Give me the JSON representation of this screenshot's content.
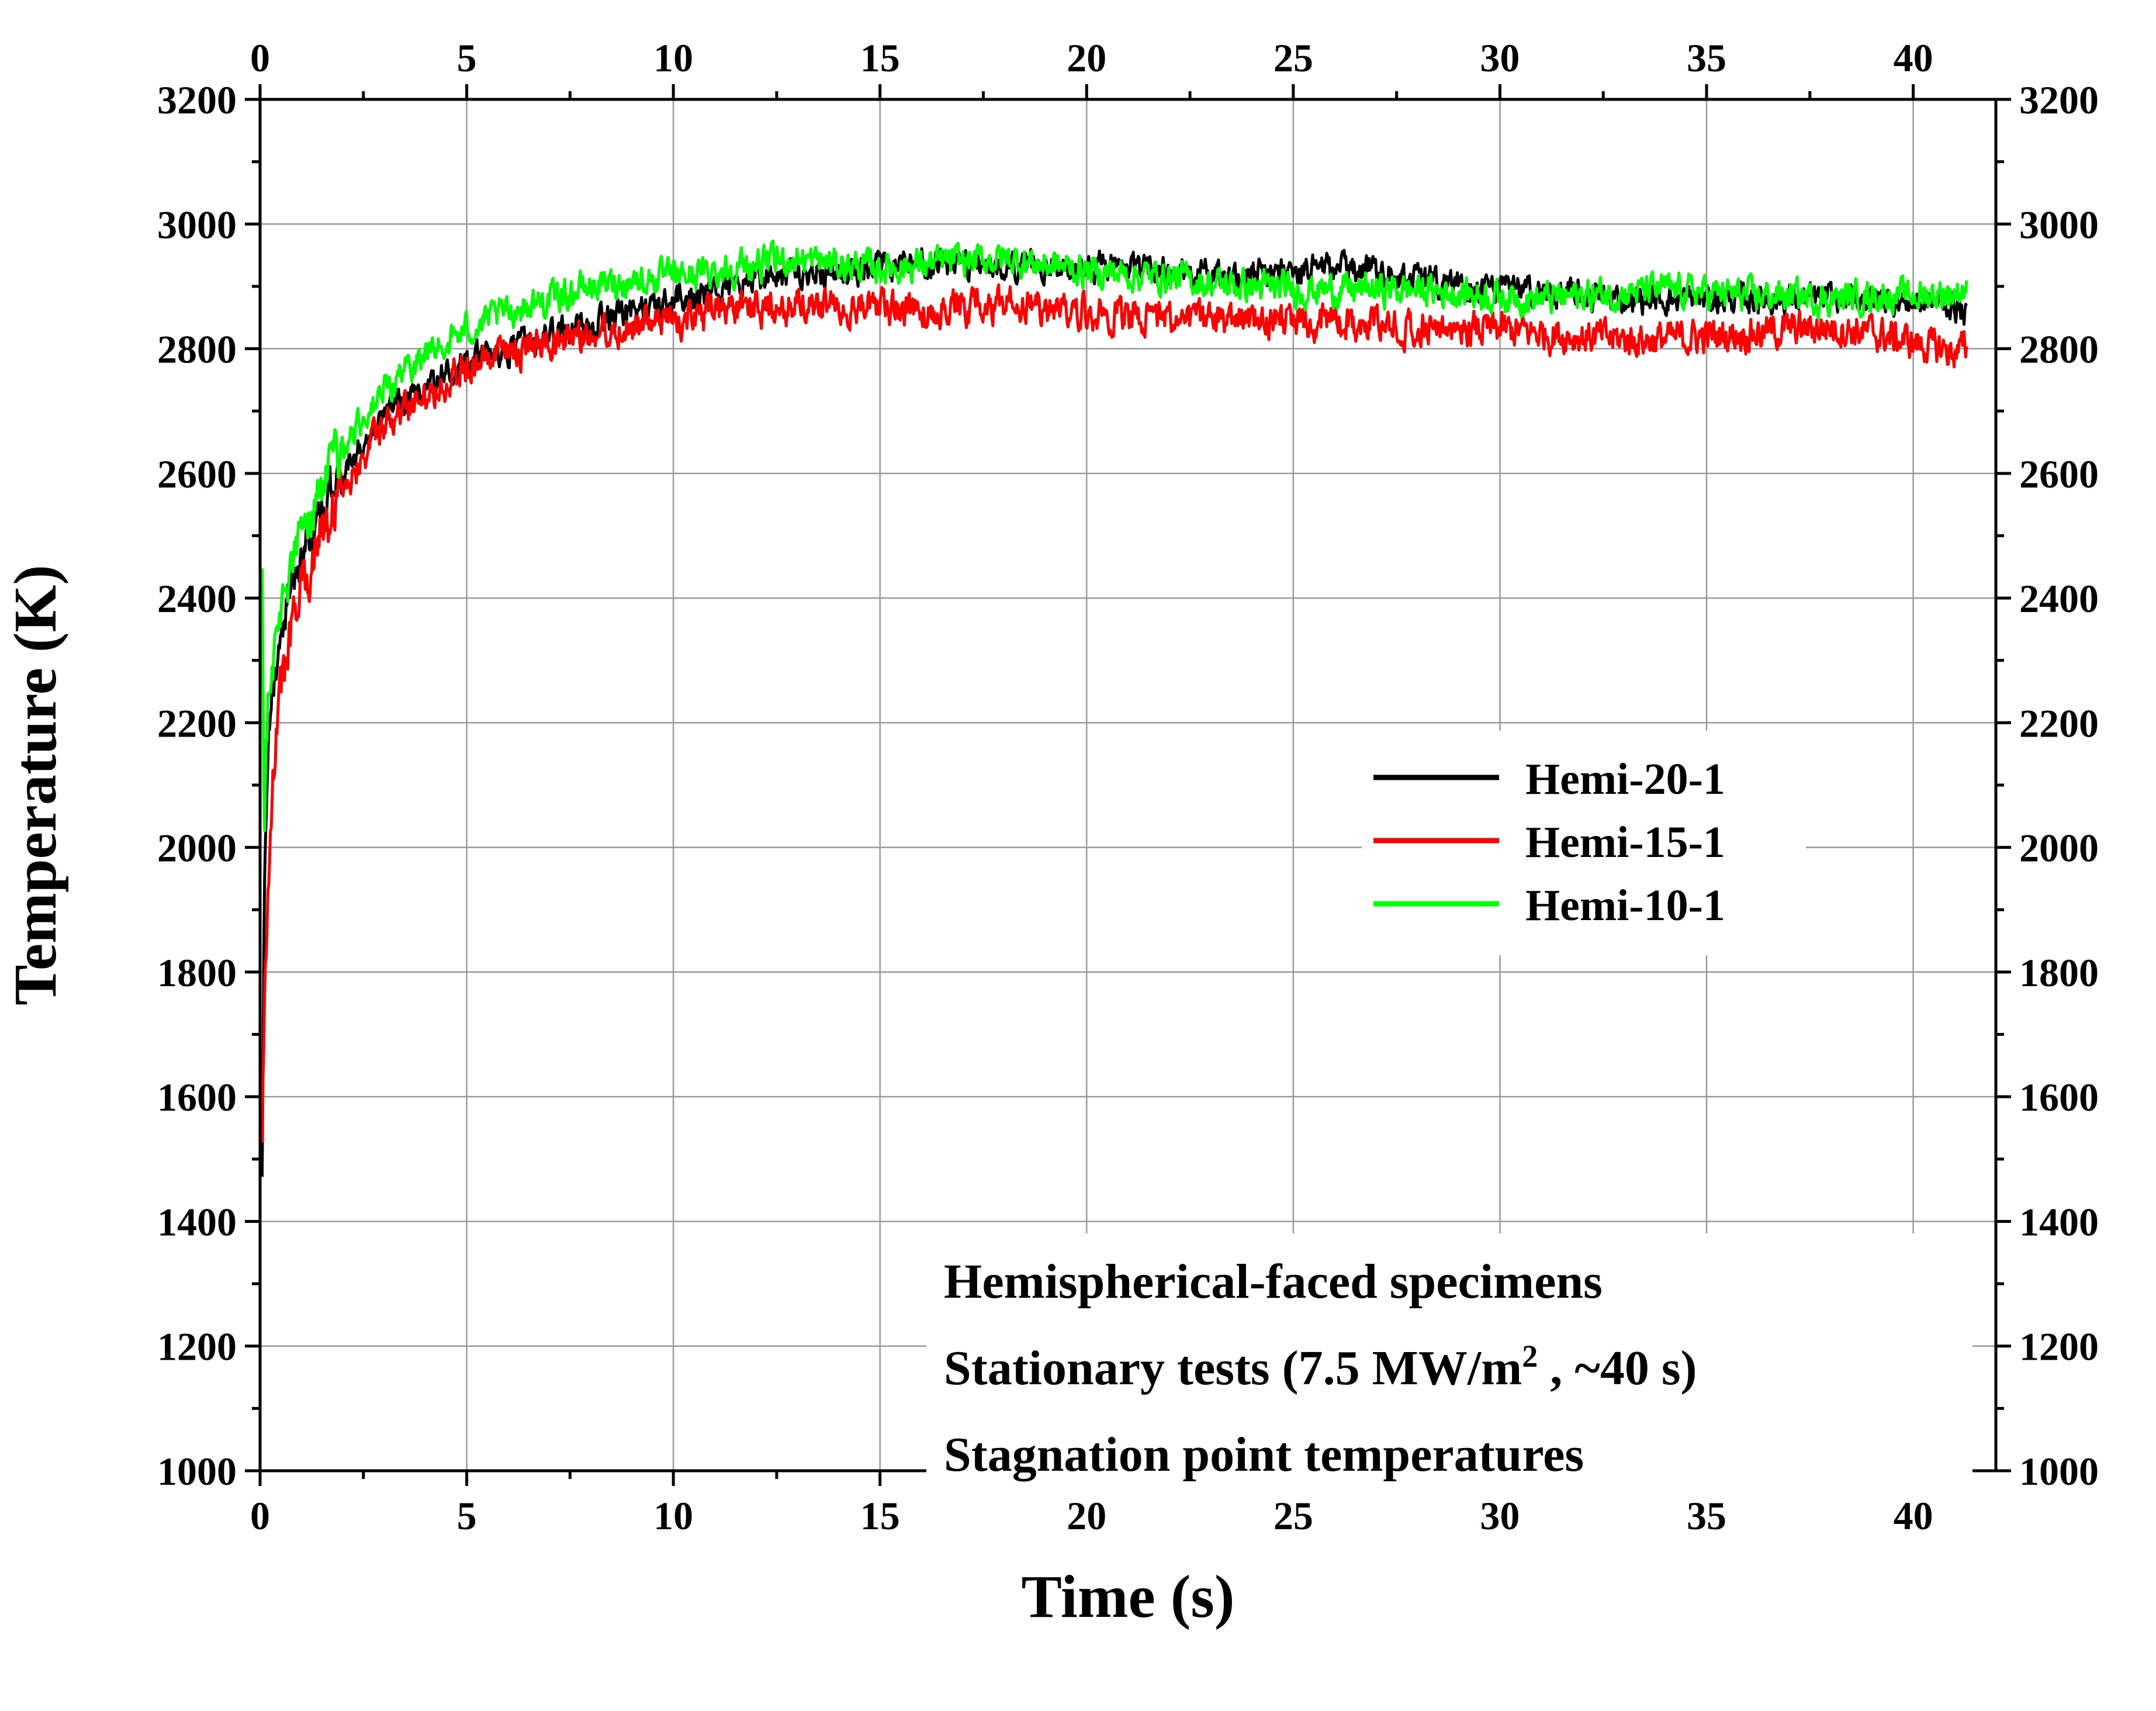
{
  "chart_data": {
    "type": "line",
    "title": "",
    "xlabel": "Time (s)",
    "ylabel": "Temperature (K)",
    "xlim": [
      0,
      42
    ],
    "ylim": [
      1000,
      3200
    ],
    "x_ticks": [
      0,
      5,
      10,
      15,
      20,
      25,
      30,
      35,
      40
    ],
    "x_tick_labels": [
      "0",
      "5",
      "10",
      "15",
      "20",
      "25",
      "30",
      "35",
      "40"
    ],
    "y_ticks": [
      1000,
      1200,
      1400,
      1600,
      1800,
      2000,
      2200,
      2400,
      2600,
      2800,
      3000,
      3200
    ],
    "y_tick_labels": [
      "1000",
      "1200",
      "1400",
      "1600",
      "1800",
      "2000",
      "2200",
      "2400",
      "2600",
      "2800",
      "3000",
      "3200"
    ],
    "grid": true,
    "mirror_axes": true,
    "legend_position": "right-middle",
    "series": [
      {
        "name": "Hemi-20-1",
        "color": "#000000",
        "x": [
          0.05,
          0.1,
          0.2,
          0.3,
          0.5,
          0.75,
          1,
          1.5,
          2,
          2.5,
          3,
          3.5,
          4,
          4.5,
          5,
          6,
          7,
          8,
          9,
          10,
          11,
          12,
          13,
          14,
          15,
          16,
          17,
          18,
          19,
          20,
          21,
          22,
          23,
          24,
          25,
          26,
          27,
          28,
          29,
          30,
          31,
          32,
          33,
          34,
          35,
          36,
          37,
          38,
          39,
          40,
          41,
          41.3
        ],
        "values": [
          1450,
          1900,
          2150,
          2250,
          2350,
          2420,
          2470,
          2540,
          2600,
          2650,
          2690,
          2720,
          2740,
          2760,
          2775,
          2800,
          2820,
          2840,
          2860,
          2880,
          2895,
          2910,
          2920,
          2925,
          2930,
          2935,
          2935,
          2935,
          2935,
          2935,
          2930,
          2925,
          2920,
          2920,
          2925,
          2930,
          2930,
          2910,
          2900,
          2895,
          2890,
          2885,
          2880,
          2880,
          2880,
          2880,
          2880,
          2880,
          2880,
          2875,
          2870,
          2850
        ],
        "noise": 18
      },
      {
        "name": "Hemi-15-1",
        "color": "#ff0000",
        "x": [
          0.05,
          0.1,
          0.2,
          0.3,
          0.5,
          0.75,
          1,
          1.5,
          2,
          2.5,
          3,
          3.5,
          4,
          4.5,
          5,
          6,
          7,
          8,
          9,
          10,
          11,
          12,
          13,
          14,
          15,
          16,
          17,
          18,
          19,
          20,
          21,
          22,
          23,
          24,
          25,
          26,
          27,
          28,
          29,
          30,
          31,
          32,
          33,
          34,
          35,
          36,
          37,
          38,
          39,
          40,
          41,
          41.3
        ],
        "values": [
          1550,
          1720,
          1950,
          2120,
          2250,
          2340,
          2410,
          2510,
          2580,
          2630,
          2670,
          2700,
          2730,
          2750,
          2770,
          2790,
          2810,
          2825,
          2835,
          2845,
          2855,
          2865,
          2870,
          2870,
          2865,
          2860,
          2865,
          2870,
          2865,
          2860,
          2855,
          2850,
          2845,
          2845,
          2845,
          2845,
          2840,
          2835,
          2830,
          2830,
          2825,
          2820,
          2815,
          2815,
          2820,
          2825,
          2830,
          2835,
          2825,
          2810,
          2795,
          2800
        ],
        "noise": 22
      },
      {
        "name": "Hemi-10-1",
        "color": "#00ff00",
        "x": [
          0.05,
          0.1,
          0.2,
          0.3,
          0.5,
          0.75,
          1,
          1.5,
          2,
          2.5,
          3,
          3.5,
          4,
          4.5,
          5,
          6,
          7,
          8,
          9,
          10,
          11,
          12,
          13,
          14,
          15,
          16,
          17,
          18,
          19,
          20,
          21,
          22,
          23,
          24,
          25,
          26,
          27,
          28,
          29,
          30,
          31,
          32,
          33,
          34,
          35,
          36,
          37,
          38,
          39,
          40,
          41,
          41.3
        ],
        "values": [
          2450,
          2050,
          2250,
          2300,
          2380,
          2450,
          2500,
          2580,
          2640,
          2690,
          2730,
          2765,
          2790,
          2810,
          2830,
          2860,
          2880,
          2900,
          2910,
          2915,
          2925,
          2935,
          2945,
          2935,
          2930,
          2935,
          2940,
          2945,
          2935,
          2925,
          2920,
          2915,
          2905,
          2900,
          2895,
          2895,
          2895,
          2895,
          2890,
          2885,
          2880,
          2885,
          2890,
          2895,
          2890,
          2885,
          2885,
          2880,
          2885,
          2885,
          2890,
          2900
        ],
        "noise": 20
      }
    ],
    "annotations": [
      {
        "segments": [
          {
            "text": "Hemispherical-faced specimens"
          }
        ]
      },
      {
        "segments": [
          {
            "text": "Stationary tests (7.5 MW/m"
          },
          {
            "text": "2",
            "sup": true
          },
          {
            "text": " , ~40 s)"
          }
        ]
      },
      {
        "segments": [
          {
            "text": "Stagnation point temperatures"
          }
        ]
      }
    ]
  }
}
